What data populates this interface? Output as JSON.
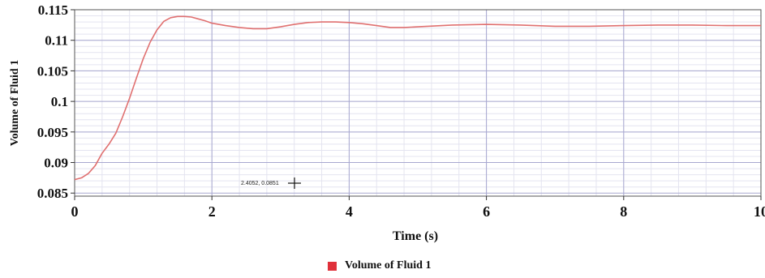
{
  "chart_data": {
    "type": "line",
    "xlabel": "Time (s)",
    "ylabel": "Volume of Fluid 1",
    "xlim": [
      0,
      10
    ],
    "ylim": [
      0.0845,
      0.115
    ],
    "x_ticks": [
      "0",
      "2",
      "4",
      "6",
      "8",
      "10"
    ],
    "y_ticks": [
      "0.115",
      "0.11",
      "0.105",
      "0.1",
      "0.095",
      "0.09",
      "0.085"
    ],
    "grid": true,
    "legend_position": "bottom-center",
    "series": [
      {
        "name": "Volume of Fluid 1",
        "color": "#e07070",
        "x": [
          0,
          0.1,
          0.2,
          0.3,
          0.4,
          0.5,
          0.6,
          0.7,
          0.8,
          0.9,
          1.0,
          1.1,
          1.2,
          1.3,
          1.4,
          1.5,
          1.6,
          1.7,
          1.8,
          1.9,
          2.0,
          2.2,
          2.4,
          2.6,
          2.8,
          3.0,
          3.2,
          3.4,
          3.6,
          3.8,
          4.0,
          4.2,
          4.4,
          4.6,
          4.8,
          5.0,
          5.5,
          6.0,
          6.5,
          7.0,
          7.5,
          8.0,
          8.5,
          9.0,
          9.5,
          10.0
        ],
        "y": [
          0.0872,
          0.0875,
          0.0882,
          0.0895,
          0.0915,
          0.093,
          0.0948,
          0.0975,
          0.1005,
          0.1038,
          0.107,
          0.1097,
          0.1117,
          0.1131,
          0.1137,
          0.1139,
          0.1139,
          0.1138,
          0.1135,
          0.1132,
          0.1128,
          0.1124,
          0.1121,
          0.1119,
          0.1119,
          0.1122,
          0.1126,
          0.1129,
          0.113,
          0.113,
          0.1129,
          0.1127,
          0.1124,
          0.1121,
          0.1121,
          0.1122,
          0.1125,
          0.1126,
          0.1125,
          0.1123,
          0.1123,
          0.1124,
          0.1125,
          0.1125,
          0.1124,
          0.1124
        ]
      }
    ],
    "cursor_readout": "2.4052, 0.0851"
  }
}
